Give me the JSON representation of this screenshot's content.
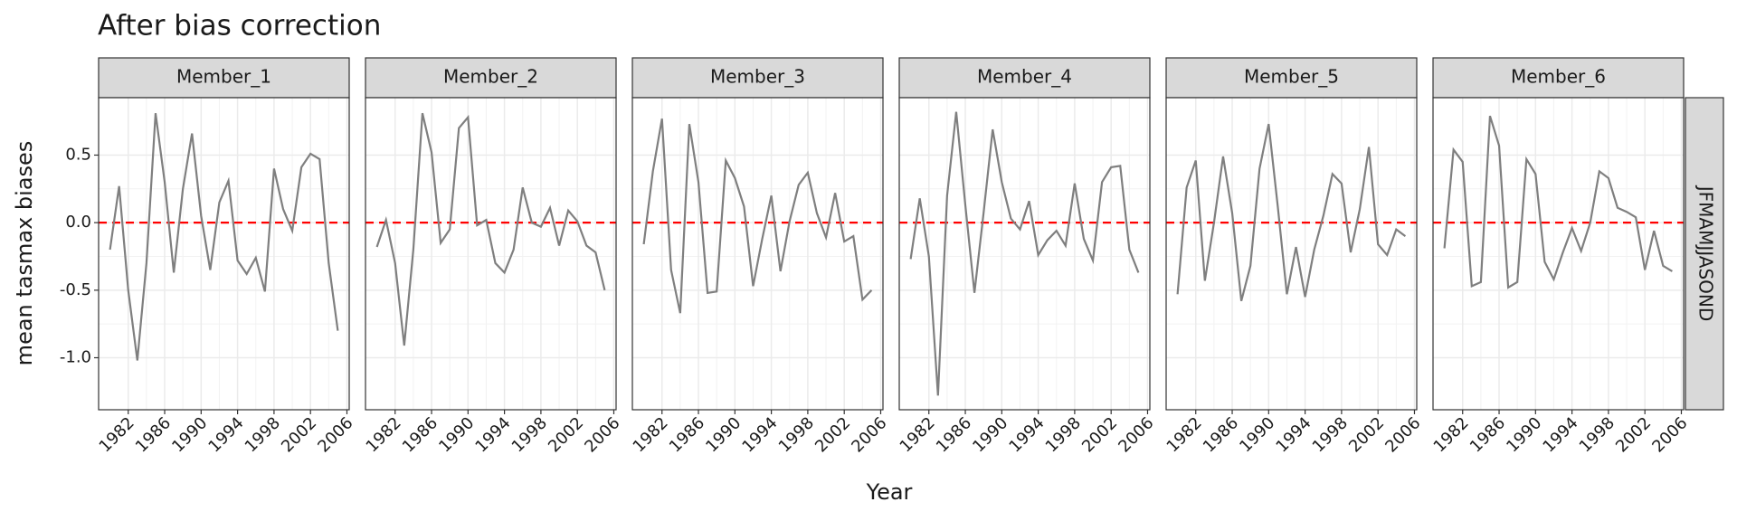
{
  "chart_data": {
    "type": "line",
    "title": "After bias correction",
    "x_label": "Year",
    "y_label": "mean tasmax biases",
    "row_label": "JFMAMJJASOND",
    "x": [
      1980,
      1981,
      1982,
      1983,
      1984,
      1985,
      1986,
      1987,
      1988,
      1989,
      1990,
      1991,
      1992,
      1993,
      1994,
      1995,
      1996,
      1997,
      1998,
      1999,
      2000,
      2001,
      2002,
      2003,
      2004,
      2005
    ],
    "series": [
      {
        "name": "Member_1",
        "color": "#7f7f7f",
        "values": [
          -0.2,
          0.27,
          -0.5,
          -1.02,
          -0.3,
          0.81,
          0.3,
          -0.37,
          0.25,
          0.66,
          0.05,
          -0.35,
          0.15,
          0.31,
          -0.28,
          -0.38,
          -0.26,
          -0.51,
          0.4,
          0.1,
          -0.06,
          0.41,
          0.51,
          0.47,
          -0.3,
          -0.8
        ]
      },
      {
        "name": "Member_2",
        "color": "#7f7f7f",
        "values": [
          -0.18,
          0.02,
          -0.3,
          -0.91,
          -0.2,
          0.81,
          0.52,
          -0.15,
          -0.05,
          0.7,
          0.78,
          -0.02,
          0.02,
          -0.3,
          -0.37,
          -0.2,
          0.26,
          0.0,
          -0.03,
          0.11,
          -0.17,
          0.09,
          0.01,
          -0.17,
          -0.22,
          -0.5
        ]
      },
      {
        "name": "Member_3",
        "color": "#7f7f7f",
        "values": [
          -0.16,
          0.38,
          0.77,
          -0.35,
          -0.67,
          0.73,
          0.3,
          -0.52,
          -0.51,
          0.46,
          0.33,
          0.12,
          -0.47,
          -0.12,
          0.2,
          -0.36,
          0.01,
          0.28,
          0.37,
          0.07,
          -0.11,
          0.22,
          -0.14,
          -0.1,
          -0.57,
          -0.5
        ]
      },
      {
        "name": "Member_4",
        "color": "#7f7f7f",
        "values": [
          -0.27,
          0.18,
          -0.25,
          -1.28,
          0.2,
          0.82,
          0.13,
          -0.52,
          0.07,
          0.69,
          0.3,
          0.03,
          -0.05,
          0.16,
          -0.24,
          -0.13,
          -0.06,
          -0.17,
          0.29,
          -0.12,
          -0.28,
          0.3,
          0.41,
          0.42,
          -0.2,
          -0.37
        ]
      },
      {
        "name": "Member_5",
        "color": "#7f7f7f",
        "values": [
          -0.53,
          0.26,
          0.46,
          -0.43,
          0.0,
          0.49,
          0.07,
          -0.58,
          -0.32,
          0.4,
          0.73,
          0.12,
          -0.53,
          -0.18,
          -0.55,
          -0.2,
          0.05,
          0.36,
          0.29,
          -0.22,
          0.1,
          0.56,
          -0.16,
          -0.24,
          -0.05,
          -0.1
        ]
      },
      {
        "name": "Member_6",
        "color": "#7f7f7f",
        "values": [
          -0.19,
          0.54,
          0.45,
          -0.47,
          -0.44,
          0.79,
          0.57,
          -0.48,
          -0.44,
          0.47,
          0.36,
          -0.29,
          -0.42,
          -0.22,
          -0.04,
          -0.21,
          0.0,
          0.38,
          0.33,
          0.11,
          0.08,
          0.04,
          -0.35,
          -0.06,
          -0.32,
          -0.36
        ]
      }
    ],
    "hline": {
      "value": 0,
      "color": "#ff0000"
    },
    "xlim": [
      1978.75,
      2006.25
    ],
    "xticks": [
      1982,
      1986,
      1990,
      1994,
      1998,
      2002,
      2006
    ],
    "ylim": [
      -1.385,
      0.925
    ],
    "yticks": [
      {
        "value": -1,
        "label": "-1.0"
      },
      {
        "value": -0.5,
        "label": "-0.5"
      },
      {
        "value": 0,
        "label": "0.0"
      },
      0.5
    ],
    "grid": true
  }
}
